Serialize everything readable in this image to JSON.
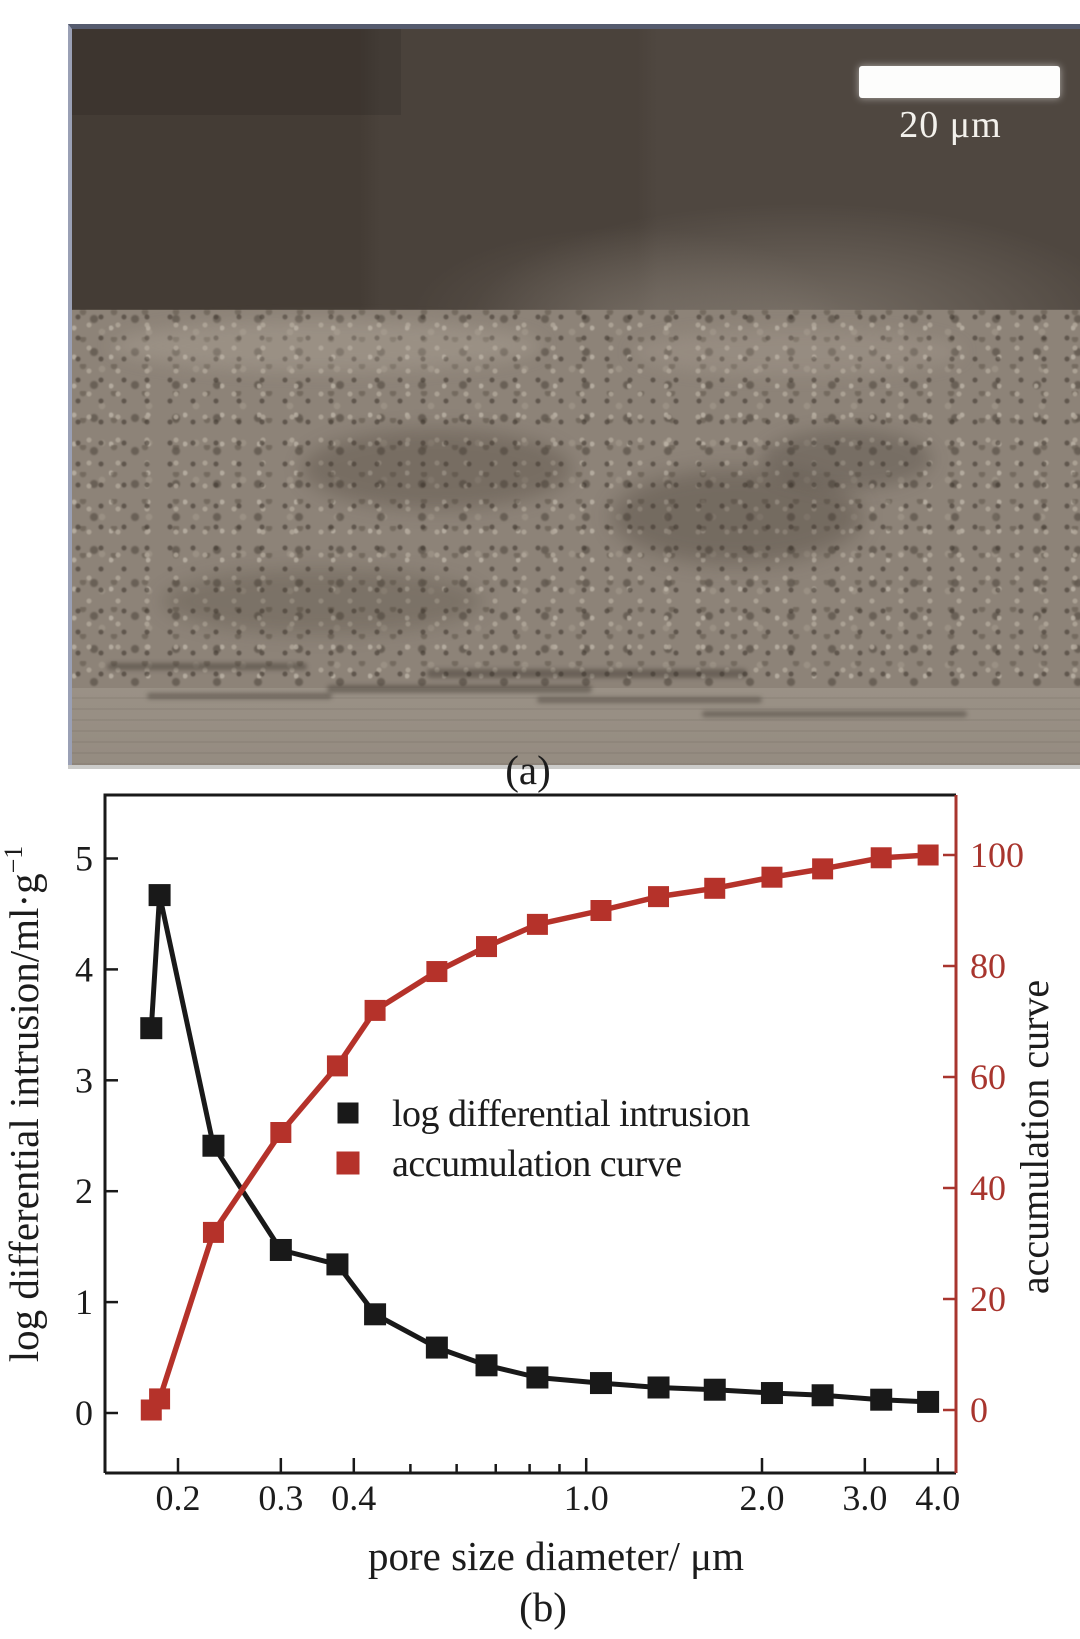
{
  "panels": {
    "a": {
      "label": "(a)",
      "scale_bar": {
        "label": "20 μm"
      }
    },
    "b": {
      "label": "(b)"
    }
  },
  "chart_data": {
    "type": "line",
    "title": "",
    "xlabel": "pore size diameter/ μm",
    "ylabel_left": {
      "text": "log differential intrusion/ml·g",
      "sup": "−1"
    },
    "ylabel_right": "accumulation curve",
    "x_scale": "log",
    "x_axis_range": [
      0.15,
      4.3
    ],
    "ylim_left": [
      -0.54,
      5.58
    ],
    "ylim_right": [
      -11.4,
      110.8
    ],
    "x_major_ticks": [
      0.2,
      0.3,
      0.4,
      1.0,
      2.0,
      3.0,
      4.0
    ],
    "x_major_tick_labels": [
      "0.2",
      "0.3",
      "0.4",
      "1.0",
      "2.0",
      "3.0",
      "4.0"
    ],
    "x_minor_ticks": [
      0.5,
      0.6,
      0.7,
      0.8,
      0.9
    ],
    "y_left_ticks": [
      0,
      1,
      2,
      3,
      4,
      5
    ],
    "y_right_ticks": [
      0,
      20,
      40,
      60,
      80,
      100
    ],
    "grid": false,
    "legend_position": "center-inside",
    "x": [
      0.18,
      0.186,
      0.23,
      0.3,
      0.375,
      0.435,
      0.555,
      0.675,
      0.825,
      1.06,
      1.33,
      1.66,
      2.08,
      2.54,
      3.2,
      3.85
    ],
    "series": [
      {
        "name": "log differential intrusion",
        "axis": "left",
        "marker": "square",
        "color": "#191919",
        "values": [
          3.47,
          4.67,
          2.41,
          1.47,
          1.34,
          0.89,
          0.59,
          0.43,
          0.32,
          0.27,
          0.23,
          0.21,
          0.18,
          0.16,
          0.12,
          0.1
        ]
      },
      {
        "name": "accumulation curve",
        "axis": "right",
        "marker": "square",
        "color": "#b5322a",
        "values": [
          0,
          2,
          32,
          50,
          62,
          72,
          79,
          83.5,
          87.5,
          90,
          92.5,
          94,
          96,
          97.5,
          99.5,
          100
        ]
      }
    ],
    "colors": {
      "black_axis": "#191919",
      "red_axis": "#a8352e",
      "red_curve": "#b5322a",
      "text": "#1c1c1c"
    }
  }
}
